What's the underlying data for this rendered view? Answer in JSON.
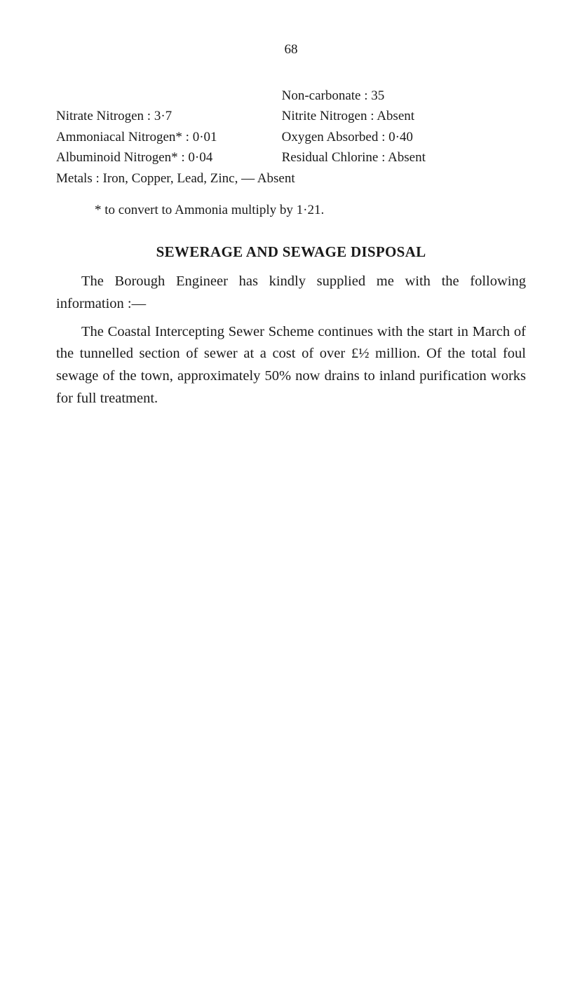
{
  "page_number": "68",
  "analysis": {
    "left_col": [
      "",
      "Nitrate Nitrogen : 3·7",
      "Ammoniacal Nitrogen* : 0·01",
      "Albuminoid Nitrogen* : 0·04"
    ],
    "right_col": [
      "Non-carbonate : 35",
      "Nitrite Nitrogen : Absent",
      "Oxygen Absorbed : 0·40",
      "Residual Chlorine : Absent"
    ],
    "full_line": "Metals : Iron, Copper, Lead, Zinc, — Absent"
  },
  "footnote": "* to convert to Ammonia multiply by 1·21.",
  "section_title": "SEWERAGE AND SEWAGE DISPOSAL",
  "para1": "The Borough Engineer has kindly supplied me with the following information :—",
  "para2": "The Coastal Intercepting Sewer Scheme continues with the start in March of the tunnelled section of sewer at a cost of over £½ million. Of the total foul sewage of the town, approximately 50% now drains to inland purification works for full treatment."
}
